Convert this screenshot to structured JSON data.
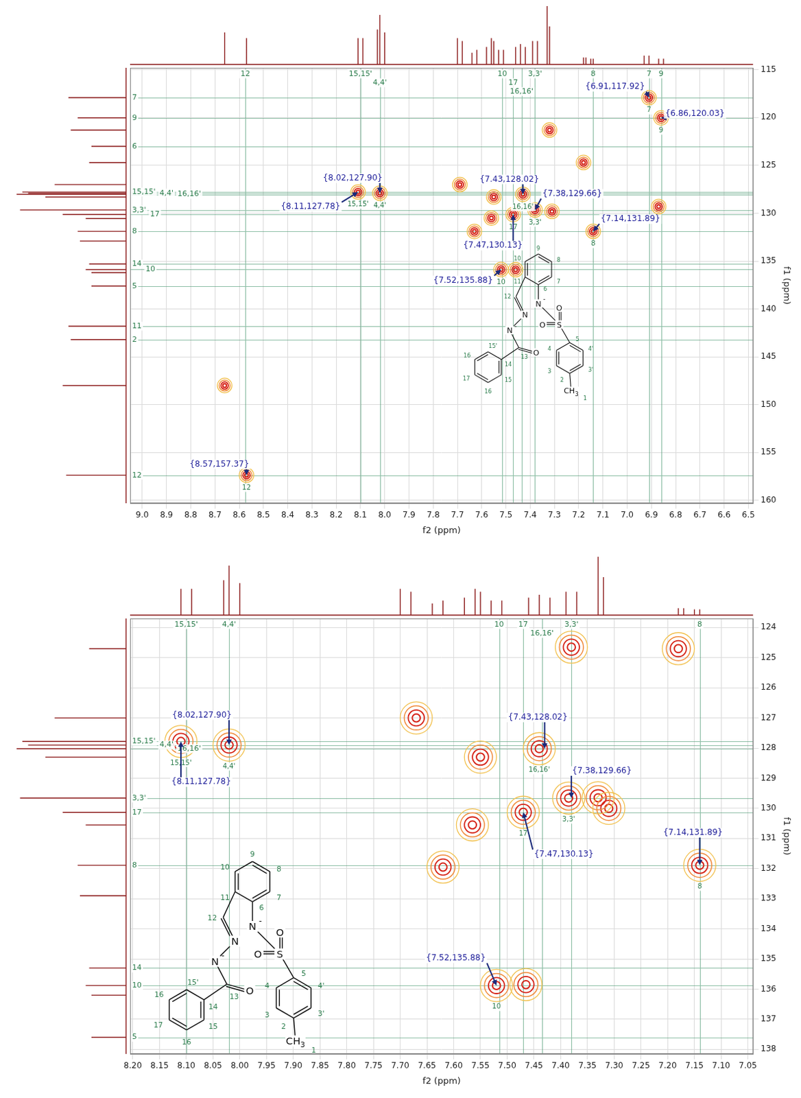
{
  "projection_1H": {
    "x": [
      8.66,
      8.57,
      8.11,
      8.09,
      8.03,
      8.02,
      8.0,
      7.7,
      7.68,
      7.64,
      7.62,
      7.58,
      7.56,
      7.55,
      7.53,
      7.51,
      7.46,
      7.44,
      7.42,
      7.39,
      7.37,
      7.33,
      7.32,
      7.18,
      7.17,
      7.15,
      7.14,
      6.93,
      6.91,
      6.87,
      6.85
    ],
    "values": [
      0.55,
      0.45,
      0.45,
      0.45,
      0.6,
      0.85,
      0.55,
      0.45,
      0.4,
      0.2,
      0.25,
      0.3,
      0.45,
      0.4,
      0.25,
      0.25,
      0.3,
      0.35,
      0.3,
      0.4,
      0.4,
      1.0,
      0.65,
      0.12,
      0.12,
      0.1,
      0.1,
      0.15,
      0.15,
      0.1,
      0.1
    ]
  },
  "projection_13C": {
    "x": [
      117.92,
      120.03,
      121.3,
      123.0,
      124.7,
      127.0,
      127.78,
      127.9,
      128.02,
      128.3,
      129.66,
      130.13,
      130.55,
      131.89,
      132.9,
      135.3,
      135.88,
      136.2,
      137.6,
      141.8,
      143.2,
      148.0,
      157.37
    ],
    "values": [
      0.5,
      0.42,
      0.48,
      0.3,
      0.32,
      0.62,
      0.9,
      0.85,
      0.95,
      0.7,
      0.92,
      0.55,
      0.35,
      0.42,
      0.4,
      0.32,
      0.35,
      0.3,
      0.3,
      0.5,
      0.48,
      0.55,
      0.52
    ]
  },
  "structure": {
    "atoms": [
      "N",
      "N",
      "N",
      "O",
      "S",
      "O",
      "O",
      "CH3"
    ],
    "charge": "-",
    "numbers": [
      "1",
      "2",
      "3",
      "3'",
      "4",
      "4'",
      "5",
      "6",
      "7",
      "8",
      "9",
      "10",
      "11",
      "12",
      "13",
      "14",
      "15",
      "15'",
      "16",
      "16",
      "17"
    ]
  },
  "chart_data": [
    {
      "type": "scatter",
      "x_label": "f2 (ppm)",
      "y_label": "f1 (ppm)",
      "xlim": [
        9.05,
        6.48
      ],
      "ylim": [
        160.3,
        114.8
      ],
      "xticks": [
        {
          "value": 9,
          "label": "9.0"
        },
        {
          "value": 8.9,
          "label": "8.9"
        },
        {
          "value": 8.8,
          "label": "8.8"
        },
        {
          "value": 8.7,
          "label": "8.7"
        },
        {
          "value": 8.6,
          "label": "8.6"
        },
        {
          "value": 8.5,
          "label": "8.5"
        },
        {
          "value": 8.4,
          "label": "8.4"
        },
        {
          "value": 8.3,
          "label": "8.3"
        },
        {
          "value": 8.2,
          "label": "8.2"
        },
        {
          "value": 8.1,
          "label": "8.1"
        },
        {
          "value": 8,
          "label": "8.0"
        },
        {
          "value": 7.9,
          "label": "7.9"
        },
        {
          "value": 7.8,
          "label": "7.8"
        },
        {
          "value": 7.7,
          "label": "7.7"
        },
        {
          "value": 7.6,
          "label": "7.6"
        },
        {
          "value": 7.5,
          "label": "7.5"
        },
        {
          "value": 7.4,
          "label": "7.4"
        },
        {
          "value": 7.3,
          "label": "7.3"
        },
        {
          "value": 7.2,
          "label": "7.2"
        },
        {
          "value": 7.1,
          "label": "7.1"
        },
        {
          "value": 7,
          "label": "7.0"
        },
        {
          "value": 6.9,
          "label": "6.9"
        },
        {
          "value": 6.8,
          "label": "6.8"
        },
        {
          "value": 6.7,
          "label": "6.7"
        },
        {
          "value": 6.6,
          "label": "6.6"
        },
        {
          "value": 6.5,
          "label": "6.5"
        }
      ],
      "yticks": [
        115,
        120,
        125,
        130,
        135,
        140,
        145,
        150,
        155,
        160
      ],
      "grid": true,
      "color": "#d62418",
      "x": [
        6.91,
        6.86,
        7.32,
        7.18,
        8.66,
        8.57,
        8.02,
        8.11,
        7.69,
        7.55,
        7.56,
        7.63,
        7.43,
        7.38,
        7.31,
        7.47,
        7.14,
        7.52,
        7.46,
        6.87
      ],
      "values": [
        117.92,
        120.03,
        121.3,
        124.7,
        148.0,
        157.37,
        127.9,
        127.78,
        127.0,
        128.3,
        130.5,
        131.9,
        128.02,
        129.66,
        129.8,
        130.13,
        131.89,
        135.88,
        135.9,
        129.3
      ],
      "point_labels": [
        "7",
        "9",
        null,
        null,
        null,
        "12",
        "4,4'",
        "15,15'",
        null,
        null,
        null,
        null,
        "16,16'",
        "3,3'",
        null,
        "17",
        "8",
        "10",
        null,
        null
      ],
      "assignments_x": [
        {
          "value": 8.575,
          "label": "12"
        },
        {
          "value": 8.1,
          "label": "15,15'"
        },
        {
          "value": 8.02,
          "label": "4,4'"
        },
        {
          "value": 7.515,
          "label": "10"
        },
        {
          "value": 7.47,
          "label": "17"
        },
        {
          "value": 7.435,
          "label": "16,16'"
        },
        {
          "value": 7.38,
          "label": "3,3'"
        },
        {
          "value": 7.14,
          "label": "8"
        },
        {
          "value": 6.91,
          "label": "7"
        },
        {
          "value": 6.86,
          "label": "9"
        }
      ],
      "assignments_y": [
        {
          "value": 117.92,
          "label": "7"
        },
        {
          "value": 120.03,
          "label": "9"
        },
        {
          "value": 123.0,
          "label": "6"
        },
        {
          "value": 128.02,
          "label": "16,16'"
        },
        {
          "value": 127.9,
          "label": "4,4'"
        },
        {
          "value": 127.78,
          "label": "15,15'"
        },
        {
          "value": 130.13,
          "label": "17"
        },
        {
          "value": 129.66,
          "label": "3,3'"
        },
        {
          "value": 131.89,
          "label": "8"
        },
        {
          "value": 135.3,
          "label": "14"
        },
        {
          "value": 135.88,
          "label": "10"
        },
        {
          "value": 137.6,
          "label": "5"
        },
        {
          "value": 141.8,
          "label": "11"
        },
        {
          "value": 143.2,
          "label": "2"
        },
        {
          "value": 157.37,
          "label": "12"
        }
      ],
      "annotations": [
        {
          "x": 6.91,
          "y": 117.92,
          "text": "{6.91,117.92}"
        },
        {
          "x": 6.86,
          "y": 120.03,
          "text": "{6.86,120.03}"
        },
        {
          "x": 8.02,
          "y": 127.9,
          "text": "{8.02,127.90}"
        },
        {
          "x": 8.11,
          "y": 127.78,
          "text": "{8.11,127.78}"
        },
        {
          "x": 7.43,
          "y": 128.02,
          "text": "{7.43,128.02}"
        },
        {
          "x": 7.47,
          "y": 130.13,
          "text": "{7.47,130.13}"
        },
        {
          "x": 7.38,
          "y": 129.66,
          "text": "{7.38,129.66}"
        },
        {
          "x": 7.14,
          "y": 131.89,
          "text": "{7.14,131.89}"
        },
        {
          "x": 7.52,
          "y": 135.88,
          "text": "{7.52,135.88}"
        },
        {
          "x": 8.57,
          "y": 157.37,
          "text": "{8.57,157.37}"
        }
      ]
    },
    {
      "type": "scatter",
      "x_label": "f2 (ppm)",
      "y_label": "f1 (ppm)",
      "xlim": [
        8.205,
        7.04
      ],
      "ylim": [
        138.15,
        123.7
      ],
      "xticks": [
        {
          "value": 8.2,
          "label": "8.20"
        },
        {
          "value": 8.15,
          "label": "8.15"
        },
        {
          "value": 8.1,
          "label": "8.10"
        },
        {
          "value": 8.05,
          "label": "8.05"
        },
        {
          "value": 8,
          "label": "8.00"
        },
        {
          "value": 7.95,
          "label": "7.95"
        },
        {
          "value": 7.9,
          "label": "7.90"
        },
        {
          "value": 7.85,
          "label": "7.85"
        },
        {
          "value": 7.8,
          "label": "7.80"
        },
        {
          "value": 7.75,
          "label": "7.75"
        },
        {
          "value": 7.7,
          "label": "7.70"
        },
        {
          "value": 7.65,
          "label": "7.65"
        },
        {
          "value": 7.6,
          "label": "7.60"
        },
        {
          "value": 7.55,
          "label": "7.55"
        },
        {
          "value": 7.5,
          "label": "7.50"
        },
        {
          "value": 7.45,
          "label": "7.45"
        },
        {
          "value": 7.4,
          "label": "7.40"
        },
        {
          "value": 7.35,
          "label": "7.35"
        },
        {
          "value": 7.3,
          "label": "7.30"
        },
        {
          "value": 7.25,
          "label": "7.25"
        },
        {
          "value": 7.2,
          "label": "7.20"
        },
        {
          "value": 7.15,
          "label": "7.15"
        },
        {
          "value": 7.1,
          "label": "7.10"
        },
        {
          "value": 7.05,
          "label": "7.05"
        }
      ],
      "yticks": [
        124,
        125,
        126,
        127,
        128,
        129,
        130,
        131,
        132,
        133,
        134,
        135,
        136,
        137,
        138
      ],
      "grid": true,
      "color": "#d62418",
      "x": [
        8.11,
        8.02,
        7.67,
        7.55,
        7.44,
        7.565,
        7.62,
        7.385,
        7.31,
        7.33,
        7.47,
        7.14,
        7.52,
        7.465,
        7.18,
        7.38
      ],
      "values": [
        127.78,
        127.9,
        127.0,
        128.3,
        128.02,
        130.55,
        131.95,
        129.66,
        130.0,
        129.65,
        130.13,
        131.89,
        135.88,
        135.85,
        124.7,
        124.65
      ],
      "point_labels": [
        "15,15'",
        "4,4'",
        null,
        null,
        "16,16'",
        null,
        null,
        "3,3'",
        null,
        null,
        "17",
        "8",
        "10",
        null,
        null,
        null
      ],
      "assignments_x": [
        {
          "value": 8.1,
          "label": "15,15'"
        },
        {
          "value": 8.02,
          "label": "4,4'"
        },
        {
          "value": 7.515,
          "label": "10"
        },
        {
          "value": 7.47,
          "label": "17"
        },
        {
          "value": 7.435,
          "label": "16,16'"
        },
        {
          "value": 7.38,
          "label": "3,3'"
        },
        {
          "value": 7.14,
          "label": "8"
        }
      ],
      "assignments_y": [
        {
          "value": 128.02,
          "label": "16,16'"
        },
        {
          "value": 127.9,
          "label": "4,4'"
        },
        {
          "value": 127.78,
          "label": "15,15'"
        },
        {
          "value": 129.66,
          "label": "3,3'"
        },
        {
          "value": 130.13,
          "label": "17"
        },
        {
          "value": 131.89,
          "label": "8"
        },
        {
          "value": 135.3,
          "label": "14"
        },
        {
          "value": 135.88,
          "label": "10"
        },
        {
          "value": 137.6,
          "label": "5"
        }
      ],
      "annotations": [
        {
          "x": 8.02,
          "y": 127.9,
          "text": "{8.02,127.90}"
        },
        {
          "x": 8.11,
          "y": 127.78,
          "text": "{8.11,127.78}"
        },
        {
          "x": 7.43,
          "y": 128.02,
          "text": "{7.43,128.02}"
        },
        {
          "x": 7.47,
          "y": 130.13,
          "text": "{7.47,130.13}"
        },
        {
          "x": 7.38,
          "y": 129.66,
          "text": "{7.38,129.66}"
        },
        {
          "x": 7.14,
          "y": 131.89,
          "text": "{7.14,131.89}"
        },
        {
          "x": 7.52,
          "y": 135.88,
          "text": "{7.52,135.88}"
        }
      ]
    }
  ]
}
